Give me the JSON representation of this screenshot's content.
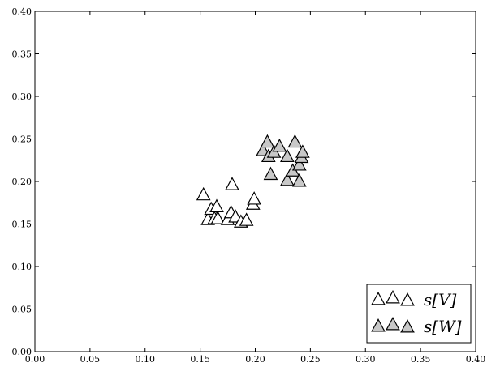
{
  "chart_data": {
    "type": "scatter",
    "title": "",
    "xlabel": "",
    "ylabel": "",
    "xlim": [
      0.0,
      0.4
    ],
    "ylim": [
      0.0,
      0.4
    ],
    "xticks": [
      "0.00",
      "0.05",
      "0.10",
      "0.15",
      "0.20",
      "0.25",
      "0.30",
      "0.35",
      "0.40"
    ],
    "yticks": [
      "0.00",
      "0.05",
      "0.10",
      "0.15",
      "0.20",
      "0.25",
      "0.30",
      "0.35",
      "0.40"
    ],
    "grid": false,
    "legend_position": "bottom-right",
    "series": [
      {
        "name": "s[V]",
        "marker": "triangle",
        "fill": "#ffffff",
        "points": [
          [
            0.153,
            0.184
          ],
          [
            0.157,
            0.155
          ],
          [
            0.16,
            0.167
          ],
          [
            0.163,
            0.156
          ],
          [
            0.165,
            0.17
          ],
          [
            0.166,
            0.156
          ],
          [
            0.175,
            0.155
          ],
          [
            0.178,
            0.163
          ],
          [
            0.179,
            0.196
          ],
          [
            0.182,
            0.158
          ],
          [
            0.187,
            0.152
          ],
          [
            0.192,
            0.154
          ],
          [
            0.198,
            0.173
          ],
          [
            0.199,
            0.179
          ]
        ]
      },
      {
        "name": "s[W]",
        "marker": "triangle",
        "fill": "#c8c8c8",
        "points": [
          [
            0.207,
            0.236
          ],
          [
            0.211,
            0.246
          ],
          [
            0.212,
            0.229
          ],
          [
            0.214,
            0.208
          ],
          [
            0.217,
            0.234
          ],
          [
            0.222,
            0.241
          ],
          [
            0.229,
            0.229
          ],
          [
            0.229,
            0.201
          ],
          [
            0.234,
            0.212
          ],
          [
            0.236,
            0.246
          ],
          [
            0.24,
            0.219
          ],
          [
            0.24,
            0.2
          ],
          [
            0.242,
            0.228
          ],
          [
            0.243,
            0.234
          ]
        ]
      }
    ]
  }
}
